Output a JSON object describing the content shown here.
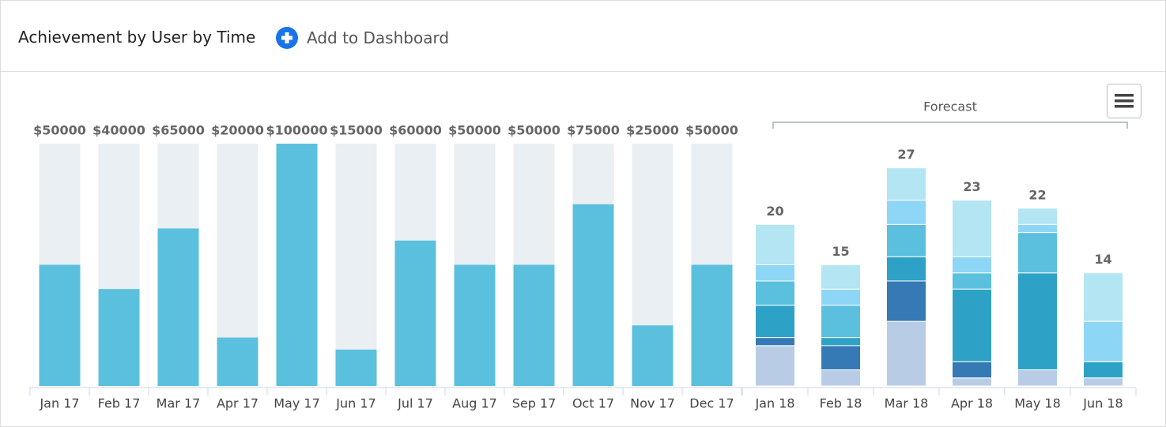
{
  "header": {
    "title": "Achievement by User by Time",
    "button": "Add to Dashboard"
  },
  "chart_data": [
    {
      "type": "bar",
      "categories": [
        "Jan 17",
        "Feb 17",
        "Mar 17",
        "Apr 17",
        "May 17",
        "Jun 17",
        "Jul 17",
        "Aug 17",
        "Sep 17",
        "Oct 17",
        "Nov 17",
        "Dec 17"
      ],
      "values": [
        50000,
        40000,
        65000,
        20000,
        100000,
        15000,
        60000,
        50000,
        50000,
        75000,
        25000,
        50000
      ],
      "value_labels": [
        "$50000",
        "$40000",
        "$65000",
        "$20000",
        "$100000",
        "$15000",
        "$60000",
        "$50000",
        "$50000",
        "$75000",
        "$25000",
        "$50000"
      ],
      "color": "#5bc0de",
      "track_color": "#eaeff3",
      "ylim": [
        0,
        100000
      ]
    },
    {
      "type": "stacked_bar",
      "annotation": "Forecast",
      "categories": [
        "Jan 18",
        "Feb 18",
        "Mar 18",
        "Apr 18",
        "May 18",
        "Jun 18"
      ],
      "series": [
        {
          "color": "#b8cce6",
          "values": [
            5,
            2,
            8,
            1,
            2,
            1
          ]
        },
        {
          "color": "#3579b5",
          "values": [
            1,
            3,
            5,
            2,
            0,
            0
          ]
        },
        {
          "color": "#2ea2c6",
          "values": [
            4,
            1,
            3,
            9,
            12,
            2
          ]
        },
        {
          "color": "#5bc0de",
          "values": [
            3,
            4,
            4,
            2,
            5,
            0
          ]
        },
        {
          "color": "#8ed6f5",
          "values": [
            2,
            2,
            3,
            2,
            1,
            5
          ]
        },
        {
          "color": "#b3e5f3",
          "values": [
            5,
            3,
            4,
            7,
            2,
            6
          ]
        }
      ],
      "totals": [
        20,
        15,
        27,
        23,
        22,
        14
      ],
      "ylim": [
        0,
        30
      ]
    }
  ]
}
